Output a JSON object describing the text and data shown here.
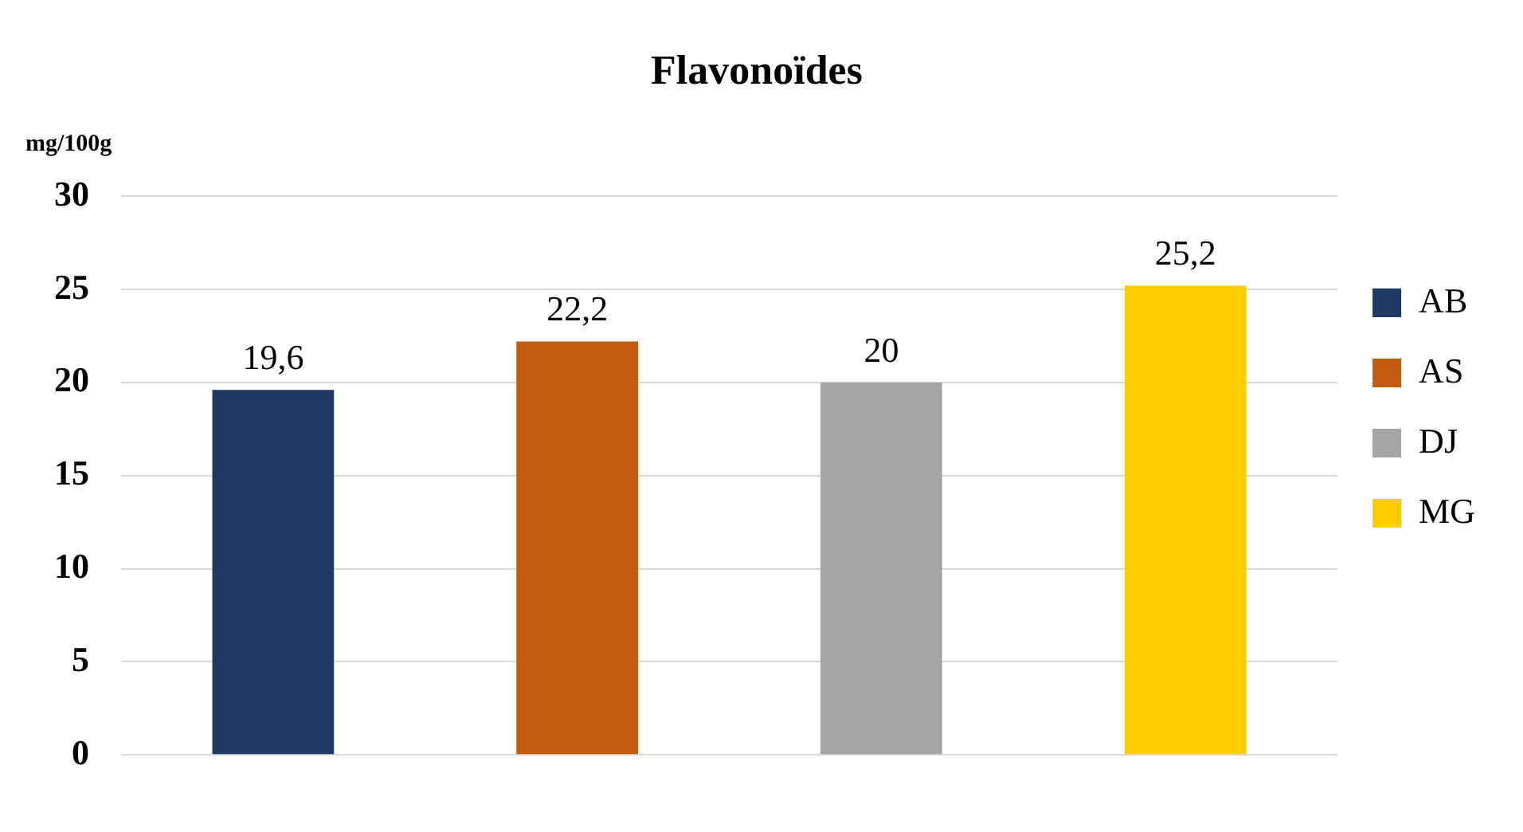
{
  "chart_data": {
    "type": "bar",
    "title": "Flavonoïdes",
    "ylabel": "mg/100g",
    "categories": [
      null,
      null,
      null,
      null
    ],
    "series": [
      {
        "name": "AB",
        "color": "#1f3864",
        "values": [
          19.6,
          null,
          null,
          null
        ],
        "value_labels": [
          "19,6",
          null,
          null,
          null
        ]
      },
      {
        "name": "AS",
        "color": "#c55a11",
        "values": [
          null,
          22.2,
          null,
          null
        ],
        "value_labels": [
          null,
          "22,2",
          null,
          null
        ]
      },
      {
        "name": "DJ",
        "color": "#a5a5a5",
        "values": [
          null,
          null,
          20,
          null
        ],
        "value_labels": [
          null,
          null,
          "20",
          null
        ]
      },
      {
        "name": "MG",
        "color": "#ffcc00",
        "values": [
          null,
          null,
          null,
          25.2
        ],
        "value_labels": [
          null,
          null,
          null,
          "25,2"
        ]
      }
    ],
    "ylim": [
      0,
      30
    ],
    "yticks": [
      0,
      5,
      10,
      15,
      20,
      25,
      30
    ],
    "grid": "y",
    "legend": "right"
  }
}
